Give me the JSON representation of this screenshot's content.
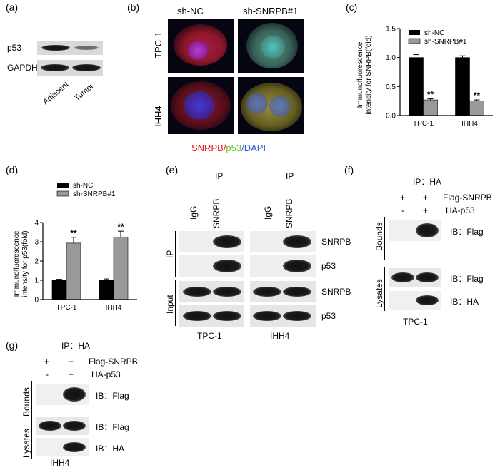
{
  "panel_a": {
    "label": "(a)",
    "rows": [
      "p53",
      "GAPDH"
    ],
    "lanes": [
      "Adjacent",
      "Tumor"
    ]
  },
  "panel_b": {
    "label": "(b)",
    "columns": [
      "sh-NC",
      "sh-SNRPB#1"
    ],
    "rows": [
      "TPC-1",
      "IHH4"
    ],
    "legend": {
      "part1": "SNRPB",
      "sep1": "/",
      "part2": "p53",
      "sep2": "/",
      "part3": "DAPI"
    },
    "colors": {
      "snrpb": "#e8131b",
      "p53": "#5fbf1b",
      "dapi": "#2f5fd6"
    }
  },
  "panel_c": {
    "label": "(c)",
    "chart_data": {
      "type": "bar",
      "categories": [
        "TPC-1",
        "IHH4"
      ],
      "series": [
        {
          "name": "sh-NC",
          "values": [
            1.0,
            1.0
          ],
          "errors": [
            0.05,
            0.03
          ],
          "color": "#000000"
        },
        {
          "name": "sh-SNRPB#1",
          "values": [
            0.27,
            0.25
          ],
          "errors": [
            0.02,
            0.02
          ],
          "color": "#999999"
        }
      ],
      "ylabel_line1": "Immunofluorescence",
      "ylabel_line2": "intensity for SNRPB(fold)",
      "ylim": [
        0,
        1.5
      ],
      "yticks": [
        "0.0",
        "0.5",
        "1.0",
        "1.5"
      ],
      "annotations": [
        "**",
        "**"
      ],
      "legend_position": "top-right"
    }
  },
  "panel_d": {
    "label": "(d)",
    "chart_data": {
      "type": "bar",
      "categories": [
        "TPC-1",
        "IHH4"
      ],
      "series": [
        {
          "name": "sh-NC",
          "values": [
            1.0,
            1.0
          ],
          "errors": [
            0.05,
            0.07
          ],
          "color": "#000000"
        },
        {
          "name": "sh-SNRPB#1",
          "values": [
            2.93,
            3.25
          ],
          "errors": [
            0.3,
            0.3
          ],
          "color": "#999999"
        }
      ],
      "ylabel_line1": "Immunofluorescence",
      "ylabel_line2": "intensity for p53(fold)",
      "ylim": [
        0,
        4
      ],
      "yticks": [
        "0",
        "1",
        "2",
        "3",
        "4"
      ],
      "annotations": [
        "**",
        "**"
      ],
      "legend_position": "top-left"
    }
  },
  "panel_e": {
    "label": "(e)",
    "ip_header": "IP",
    "lanes": [
      "IgG",
      "SNRPB"
    ],
    "side_ip": "IP",
    "side_input": "Input",
    "rows": [
      "SNRPB",
      "p53",
      "SNRPB",
      "p53"
    ],
    "cells": [
      "TPC-1",
      "IHH4"
    ]
  },
  "panel_f": {
    "label": "(f)",
    "ip_header": "IP：HA",
    "plus_minus": {
      "r1": [
        "+",
        "+"
      ],
      "r2": [
        "-",
        "+"
      ]
    },
    "conditions": [
      "Flag-SNRPB",
      "HA-p53"
    ],
    "side": [
      "Bounds",
      "Lysates"
    ],
    "ib": [
      "IB：Flag",
      "IB：Flag",
      "IB：HA"
    ],
    "cell": "TPC-1"
  },
  "panel_g": {
    "label": "(g)",
    "ip_header": "IP：HA",
    "plus_minus": {
      "r1": [
        "+",
        "+"
      ],
      "r2": [
        "-",
        "+"
      ]
    },
    "conditions": [
      "Flag-SNRPB",
      "HA-p53"
    ],
    "side": [
      "Bounds",
      "Lysates"
    ],
    "ib": [
      "IB：Flag",
      "IB：Flag",
      "IB：HA"
    ],
    "cell": "IHH4"
  }
}
